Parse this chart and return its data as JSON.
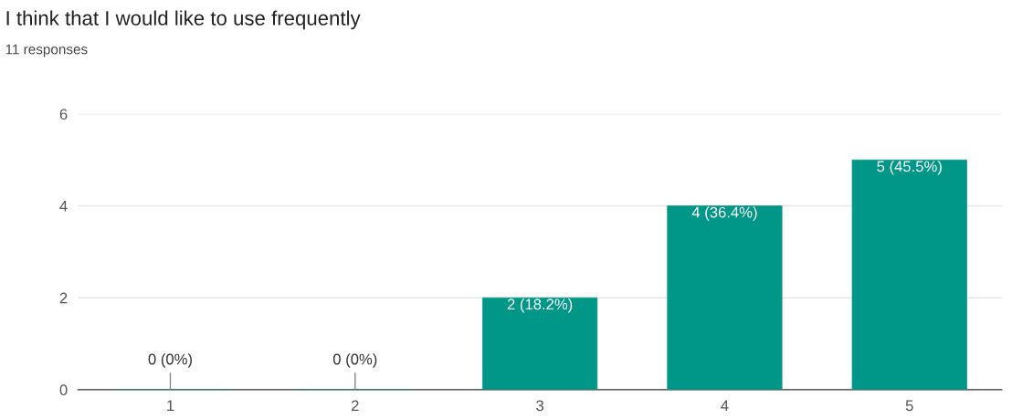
{
  "chart_data": {
    "type": "bar",
    "title": "I think that I would like to use frequently",
    "subtitle": "11 responses",
    "categories": [
      "1",
      "2",
      "3",
      "4",
      "5"
    ],
    "values": [
      0,
      0,
      2,
      4,
      5
    ],
    "value_labels": [
      "0 (0%)",
      "0 (0%)",
      "2 (18.2%)",
      "4 (36.4%)",
      "5 (45.5%)"
    ],
    "color": "#009688",
    "ylim": [
      0,
      6
    ],
    "yticks": [
      0,
      2,
      4,
      6
    ],
    "grid": "y"
  }
}
